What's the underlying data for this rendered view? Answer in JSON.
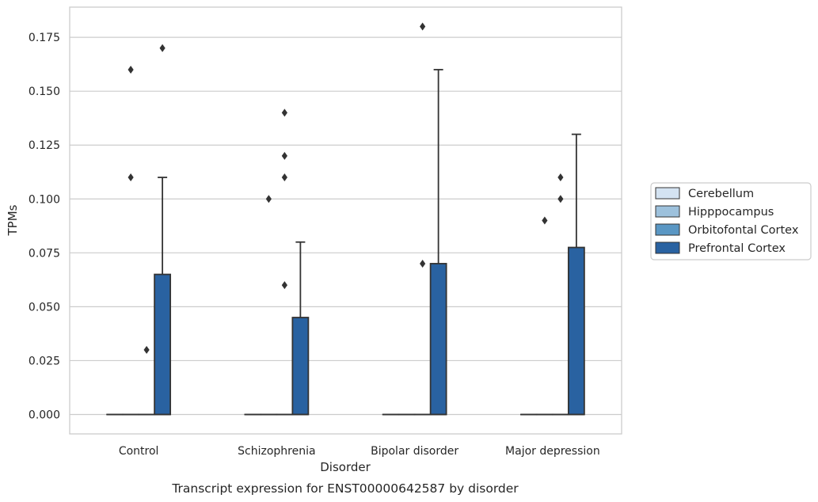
{
  "chart_data": {
    "type": "box",
    "title": "Transcript expression for ENST00000642587 by disorder",
    "xlabel": "Disorder",
    "ylabel": "TPMs",
    "ylim": [
      -0.009,
      0.189
    ],
    "yticks": [
      "0.000",
      "0.025",
      "0.050",
      "0.075",
      "0.100",
      "0.125",
      "0.150",
      "0.175"
    ],
    "grid": "horizontal",
    "legend_position": "right",
    "categories": [
      "Control",
      "Schizophrenia",
      "Bipolar disorder",
      "Major depression"
    ],
    "series": [
      {
        "name": "Cerebellum",
        "color": "#d4e3f2",
        "boxes": [
          {
            "q1": 0,
            "median": 0,
            "q3": 0,
            "whisker_low": 0,
            "whisker_high": 0,
            "outliers": []
          },
          {
            "q1": 0,
            "median": 0,
            "q3": 0,
            "whisker_low": 0,
            "whisker_high": 0,
            "outliers": []
          },
          {
            "q1": 0,
            "median": 0,
            "q3": 0,
            "whisker_low": 0,
            "whisker_high": 0,
            "outliers": []
          },
          {
            "q1": 0,
            "median": 0,
            "q3": 0,
            "whisker_low": 0,
            "whisker_high": 0,
            "outliers": []
          }
        ]
      },
      {
        "name": "Hipppocampus",
        "color": "#9dc1dc",
        "boxes": [
          {
            "q1": 0,
            "median": 0,
            "q3": 0,
            "whisker_low": 0,
            "whisker_high": 0,
            "outliers": [
              0.16,
              0.11
            ]
          },
          {
            "q1": 0,
            "median": 0,
            "q3": 0,
            "whisker_low": 0,
            "whisker_high": 0,
            "outliers": [
              0.1
            ]
          },
          {
            "q1": 0,
            "median": 0,
            "q3": 0,
            "whisker_low": 0,
            "whisker_high": 0,
            "outliers": []
          },
          {
            "q1": 0,
            "median": 0,
            "q3": 0,
            "whisker_low": 0,
            "whisker_high": 0,
            "outliers": [
              0.09
            ]
          }
        ]
      },
      {
        "name": "Orbitofontal Cortex",
        "color": "#5a97c4",
        "boxes": [
          {
            "q1": 0,
            "median": 0,
            "q3": 0,
            "whisker_low": 0,
            "whisker_high": 0,
            "outliers": [
              0.03
            ]
          },
          {
            "q1": 0,
            "median": 0,
            "q3": 0,
            "whisker_low": 0,
            "whisker_high": 0,
            "outliers": [
              0.14,
              0.12,
              0.11,
              0.06
            ]
          },
          {
            "q1": 0,
            "median": 0,
            "q3": 0,
            "whisker_low": 0,
            "whisker_high": 0,
            "outliers": [
              0.18,
              0.07
            ]
          },
          {
            "q1": 0,
            "median": 0,
            "q3": 0,
            "whisker_low": 0,
            "whisker_high": 0,
            "outliers": [
              0.11,
              0.1
            ]
          }
        ]
      },
      {
        "name": "Prefrontal Cortex",
        "color": "#2962a1",
        "boxes": [
          {
            "q1": 0,
            "median": 0,
            "q3": 0.065,
            "whisker_low": 0,
            "whisker_high": 0.11,
            "outliers": [
              0.17
            ]
          },
          {
            "q1": 0,
            "median": 0,
            "q3": 0.045,
            "whisker_low": 0,
            "whisker_high": 0.08,
            "outliers": []
          },
          {
            "q1": 0,
            "median": 0,
            "q3": 0.07,
            "whisker_low": 0,
            "whisker_high": 0.16,
            "outliers": []
          },
          {
            "q1": 0,
            "median": 0,
            "q3": 0.0775,
            "whisker_low": 0,
            "whisker_high": 0.13,
            "outliers": []
          }
        ]
      }
    ]
  }
}
